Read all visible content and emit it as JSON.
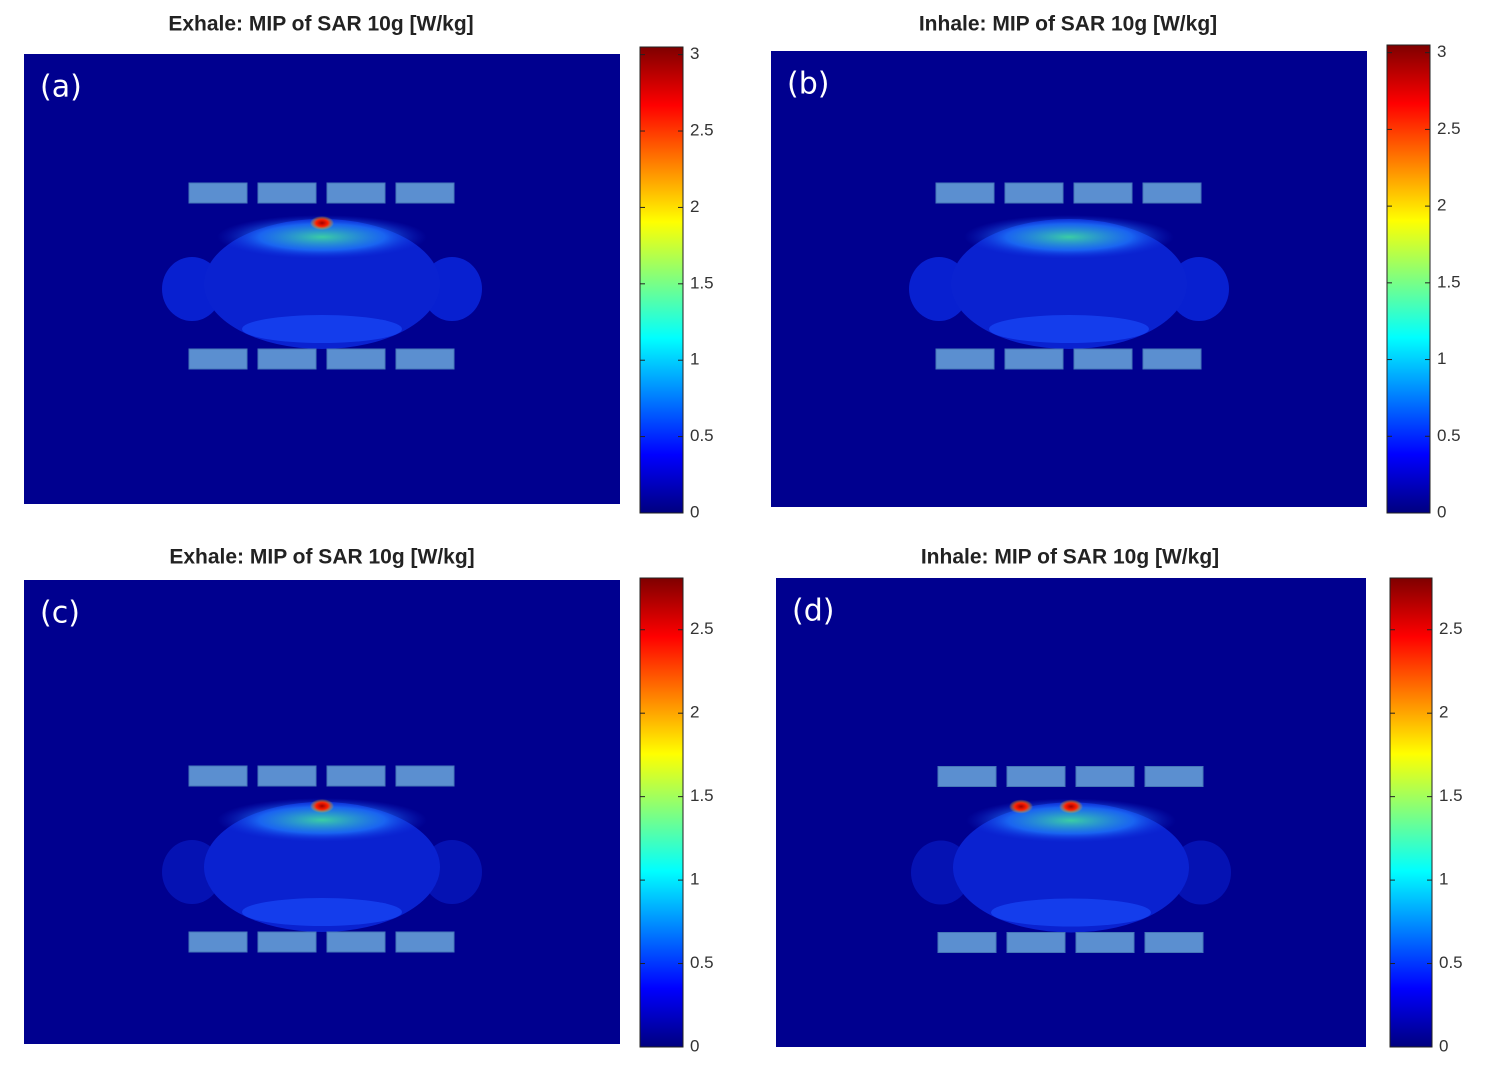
{
  "chart_data": [
    {
      "type": "heatmap",
      "title": "Exhale: MIP of SAR 10g [W/kg]",
      "panel_label": "(a)",
      "clim": [
        0,
        3.05
      ],
      "cticks": [
        0,
        0.5,
        1,
        1.5,
        2,
        2.5,
        3
      ]
    },
    {
      "type": "heatmap",
      "title": "Inhale: MIP of SAR 10g [W/kg]",
      "panel_label": "(b)",
      "clim": [
        0,
        3.05
      ],
      "cticks": [
        0,
        0.5,
        1,
        1.5,
        2,
        2.5,
        3
      ]
    },
    {
      "type": "heatmap",
      "title": "Exhale: MIP of SAR 10g [W/kg]",
      "panel_label": "(c)",
      "clim": [
        0,
        2.81
      ],
      "cticks": [
        0,
        0.5,
        1,
        1.5,
        2,
        2.5
      ]
    },
    {
      "type": "heatmap",
      "title": "Inhale: MIP of SAR 10g [W/kg]",
      "panel_label": "(d)",
      "clim": [
        0,
        2.81
      ],
      "cticks": [
        0,
        0.5,
        1,
        1.5,
        2,
        2.5
      ]
    }
  ]
}
